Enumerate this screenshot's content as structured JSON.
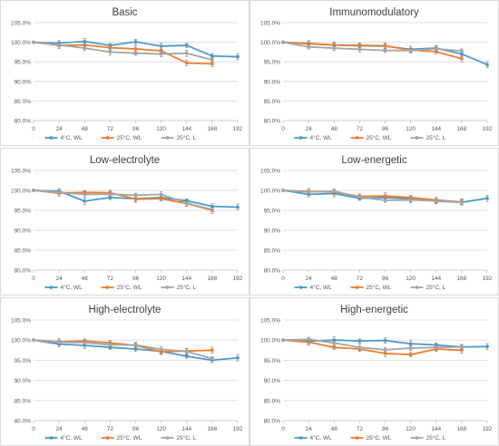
{
  "x_ticks": [
    "0",
    "24",
    "48",
    "72",
    "96",
    "120",
    "144",
    "168",
    "192"
  ],
  "y_ticks": [
    "80.0%",
    "85.0%",
    "90.0%",
    "95.0%",
    "100.0%",
    "105.0%"
  ],
  "legend": [
    "4°C, WL",
    "25°C, WL",
    "25°C, L"
  ],
  "colors": {
    "4C_WL": "#4a9cc9",
    "25C_WL": "#ed7d31",
    "25C_L": "#a5a5a5",
    "grid": "#d9d9d9",
    "axis": "#bfbfbf",
    "text": "#595959"
  },
  "chart_data": [
    {
      "type": "line",
      "title": "Basic",
      "x": [
        0,
        24,
        48,
        72,
        96,
        120,
        144,
        168,
        192
      ],
      "ylim": [
        80,
        105
      ],
      "series": [
        {
          "name": "4°C, WL",
          "color": "#4a9cc9",
          "x": [
            0,
            24,
            48,
            72,
            96,
            120,
            144,
            168,
            192
          ],
          "y": [
            100.0,
            99.8,
            100.2,
            99.2,
            100.1,
            99.0,
            99.2,
            96.5,
            96.3
          ]
        },
        {
          "name": "25°C, WL",
          "color": "#ed7d31",
          "x": [
            0,
            24,
            48,
            72,
            96,
            120,
            144,
            168
          ],
          "y": [
            100.0,
            99.2,
            99.3,
            98.6,
            98.3,
            97.8,
            94.7,
            94.5
          ]
        },
        {
          "name": "25°C, L",
          "color": "#a5a5a5",
          "x": [
            0,
            24,
            48,
            72,
            96,
            120,
            144,
            168
          ],
          "y": [
            100.0,
            99.3,
            98.5,
            97.5,
            97.2,
            97.0,
            97.2,
            95.5
          ]
        }
      ]
    },
    {
      "type": "line",
      "title": "Immunomodulatory",
      "x": [
        0,
        24,
        48,
        72,
        96,
        120,
        144,
        168,
        192
      ],
      "ylim": [
        80,
        105
      ],
      "series": [
        {
          "name": "4°C, WL",
          "color": "#4a9cc9",
          "x": [
            0,
            24,
            48,
            72,
            96,
            120,
            144,
            168,
            192
          ],
          "y": [
            100.0,
            99.7,
            99.3,
            99.1,
            99.0,
            98.2,
            98.5,
            97.0,
            94.3
          ]
        },
        {
          "name": "25°C, WL",
          "color": "#ed7d31",
          "x": [
            0,
            24,
            48,
            72,
            96,
            120,
            144,
            168
          ],
          "y": [
            100.0,
            99.6,
            99.3,
            99.2,
            99.1,
            98.0,
            97.6,
            95.8
          ]
        },
        {
          "name": "25°C, L",
          "color": "#a5a5a5",
          "x": [
            0,
            24,
            48,
            72,
            96,
            120,
            144,
            168
          ],
          "y": [
            100.0,
            98.8,
            98.5,
            98.2,
            97.9,
            97.9,
            98.3,
            97.8
          ]
        }
      ]
    },
    {
      "type": "line",
      "title": "Low-electrolyte",
      "x": [
        0,
        24,
        48,
        72,
        96,
        120,
        144,
        168,
        192
      ],
      "ylim": [
        80,
        105
      ],
      "series": [
        {
          "name": "4°C, WL",
          "color": "#4a9cc9",
          "x": [
            0,
            24,
            48,
            72,
            96,
            120,
            144,
            168,
            192
          ],
          "y": [
            100.0,
            99.8,
            97.3,
            98.2,
            97.9,
            98.2,
            97.4,
            96.0,
            95.8
          ]
        },
        {
          "name": "25°C, WL",
          "color": "#ed7d31",
          "x": [
            0,
            24,
            48,
            72,
            96,
            120,
            144,
            168
          ],
          "y": [
            100.0,
            99.3,
            99.5,
            99.4,
            97.8,
            97.9,
            96.7,
            95.0
          ]
        },
        {
          "name": "25°C, L",
          "color": "#a5a5a5",
          "x": [
            0,
            24,
            48,
            72,
            96,
            120,
            144,
            168
          ],
          "y": [
            100.0,
            99.5,
            99.0,
            99.0,
            98.8,
            99.0,
            96.8,
            95.2
          ]
        }
      ]
    },
    {
      "type": "line",
      "title": "Low-energetic",
      "x": [
        0,
        24,
        48,
        72,
        96,
        120,
        144,
        168,
        192
      ],
      "ylim": [
        80,
        105
      ],
      "series": [
        {
          "name": "4°C, WL",
          "color": "#4a9cc9",
          "x": [
            0,
            24,
            48,
            72,
            96,
            120,
            144,
            168,
            192
          ],
          "y": [
            100.0,
            99.0,
            99.2,
            98.0,
            98.2,
            97.9,
            97.3,
            97.0,
            98.0
          ]
        },
        {
          "name": "25°C, WL",
          "color": "#ed7d31",
          "x": [
            0,
            24,
            48,
            72,
            96,
            120,
            144,
            168
          ],
          "y": [
            100.0,
            99.7,
            99.6,
            98.5,
            98.6,
            98.2,
            97.6,
            97.1
          ]
        },
        {
          "name": "25°C, L",
          "color": "#a5a5a5",
          "x": [
            0,
            24,
            48,
            72,
            96,
            120,
            144,
            168
          ],
          "y": [
            100.0,
            99.6,
            99.8,
            98.3,
            97.5,
            97.6,
            97.4,
            97.0
          ]
        }
      ]
    },
    {
      "type": "line",
      "title": "High-electrolyte",
      "x": [
        0,
        24,
        48,
        72,
        96,
        120,
        144,
        168,
        192
      ],
      "ylim": [
        80,
        105
      ],
      "series": [
        {
          "name": "4°C, WL",
          "color": "#4a9cc9",
          "x": [
            0,
            24,
            48,
            72,
            96,
            120,
            144,
            168,
            192
          ],
          "y": [
            100.0,
            99.0,
            98.7,
            98.2,
            97.8,
            97.2,
            96.0,
            95.0,
            95.6
          ]
        },
        {
          "name": "25°C, WL",
          "color": "#ed7d31",
          "x": [
            0,
            24,
            48,
            72,
            96,
            120,
            144,
            168
          ],
          "y": [
            100.0,
            99.6,
            99.8,
            99.3,
            98.7,
            97.1,
            97.3,
            97.5
          ]
        },
        {
          "name": "25°C, L",
          "color": "#a5a5a5",
          "x": [
            0,
            24,
            48,
            72,
            96,
            120,
            144,
            168
          ],
          "y": [
            100.0,
            99.5,
            99.4,
            98.8,
            98.8,
            97.7,
            97.2,
            95.4
          ]
        }
      ]
    },
    {
      "type": "line",
      "title": "High-energetic",
      "x": [
        0,
        24,
        48,
        72,
        96,
        120,
        144,
        168,
        192
      ],
      "ylim": [
        80,
        105
      ],
      "series": [
        {
          "name": "4°C, WL",
          "color": "#4a9cc9",
          "x": [
            0,
            24,
            48,
            72,
            96,
            120,
            144,
            168,
            192
          ],
          "y": [
            100.0,
            99.7,
            100.0,
            99.8,
            99.9,
            99.1,
            98.8,
            98.3,
            98.4
          ]
        },
        {
          "name": "25°C, WL",
          "color": "#ed7d31",
          "x": [
            0,
            24,
            48,
            72,
            96,
            120,
            144,
            168
          ],
          "y": [
            100.0,
            99.5,
            98.2,
            97.8,
            96.7,
            96.4,
            97.8,
            97.5
          ]
        },
        {
          "name": "25°C, L",
          "color": "#a5a5a5",
          "x": [
            0,
            24,
            48,
            72,
            96,
            120,
            144,
            168
          ],
          "y": [
            100.0,
            100.2,
            99.3,
            98.2,
            97.6,
            98.0,
            98.2,
            98.3
          ]
        }
      ]
    }
  ]
}
